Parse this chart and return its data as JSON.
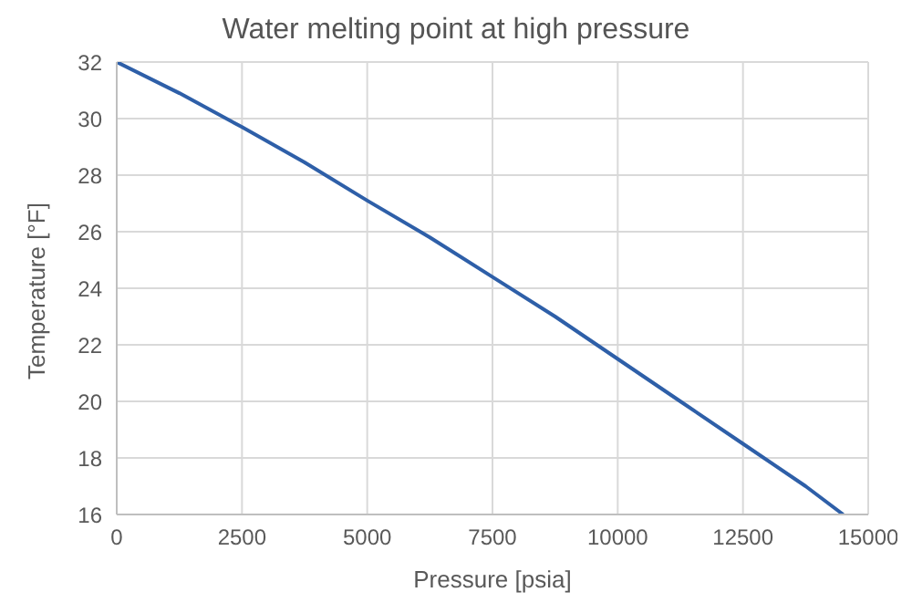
{
  "chart_data": {
    "type": "line",
    "title": "Water melting point at high pressure",
    "xlabel": "Pressure [psia]",
    "ylabel": "Temperature [°F]",
    "x": [
      0,
      1250,
      2500,
      3750,
      5000,
      6250,
      7500,
      8750,
      10000,
      11250,
      12500,
      13750,
      14500
    ],
    "series": [
      {
        "color": "#2e5fa8",
        "values": [
          32,
          30.9,
          29.7,
          28.45,
          27.1,
          25.8,
          24.4,
          23.0,
          21.5,
          20.0,
          18.5,
          17.0,
          16
        ]
      }
    ],
    "xlim": [
      0,
      15000
    ],
    "xticks": [
      0,
      2500,
      5000,
      7500,
      10000,
      12500,
      15000
    ],
    "ylim": [
      16,
      32
    ],
    "yticks": [
      16,
      18,
      20,
      22,
      24,
      26,
      28,
      30,
      32
    ],
    "grid": true,
    "legend": false,
    "marker": "none",
    "line_style": "solid"
  }
}
